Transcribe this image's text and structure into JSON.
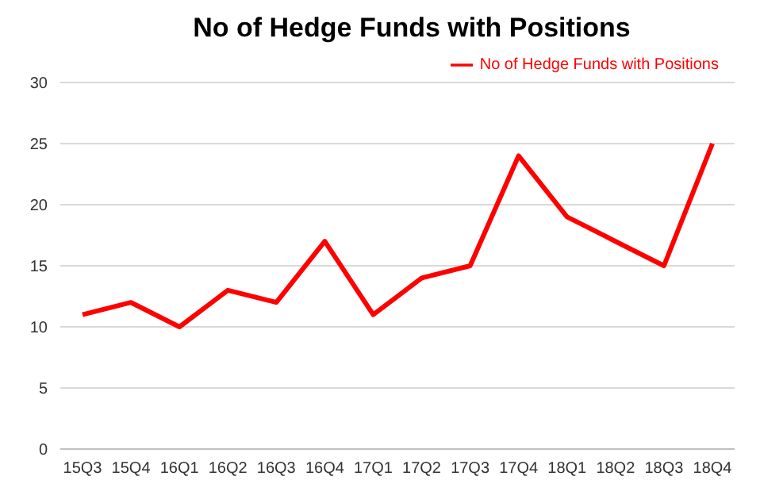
{
  "chart_data": {
    "type": "line",
    "title": "No of Hedge Funds with Positions",
    "categories": [
      "15Q3",
      "15Q4",
      "16Q1",
      "16Q2",
      "16Q3",
      "16Q4",
      "17Q1",
      "17Q2",
      "17Q3",
      "17Q4",
      "18Q1",
      "18Q2",
      "18Q3",
      "18Q4"
    ],
    "series": [
      {
        "name": "No of Hedge Funds with Positions",
        "color": "#ff0000",
        "values": [
          11,
          12,
          10,
          13,
          12,
          17,
          11,
          14,
          15,
          24,
          19,
          17,
          15,
          25
        ]
      }
    ],
    "ylim": [
      0,
      30
    ],
    "yticks": [
      0,
      5,
      10,
      15,
      20,
      25,
      30
    ],
    "grid": "y",
    "legend": "top right",
    "marker": "none",
    "line_style": "solid"
  }
}
